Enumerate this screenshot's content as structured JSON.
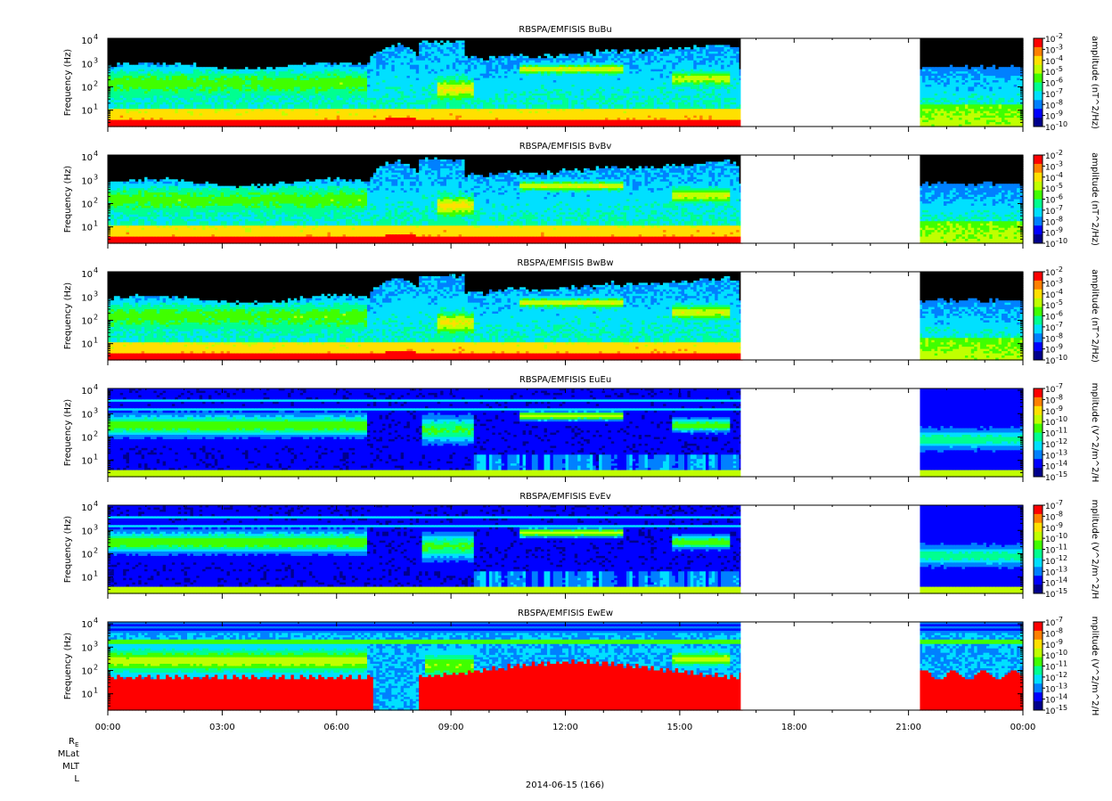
{
  "chart_data": {
    "type": "heatmap",
    "date_label": "2014-06-15 (166)",
    "x_axis": {
      "range": [
        "00:00",
        "24:00"
      ],
      "tick_labels": [
        "00:00",
        "03:00",
        "06:00",
        "09:00",
        "12:00",
        "15:00",
        "18:00",
        "21:00",
        "00:00"
      ],
      "data_gap_hours": [
        16.6,
        21.3
      ]
    },
    "ephemeris_labels": [
      "R_E",
      "MLat",
      "MLT",
      "L"
    ],
    "panels": [
      {
        "title": "RBSPA/EMFISIS  BuBu",
        "ylabel": "Frequency (Hz)",
        "yscale": "log",
        "ylim_hz": [
          2,
          12000
        ],
        "y_ticks": [
          "10^4",
          "10^3",
          "10^2",
          "10^1"
        ],
        "colorbar_label": "amplitude (nT^2/Hz)",
        "colorbar_scale": "log",
        "colorbar_range_exp": [
          -10,
          -2
        ],
        "colorbar_ticks": [
          "10^-2",
          "10^-3",
          "10^-4",
          "10^-5",
          "10^-6",
          "10^-7",
          "10^-8",
          "10^-9",
          "10^-10"
        ],
        "kind": "B"
      },
      {
        "title": "RBSPA/EMFISIS  BvBv",
        "ylabel": "Frequency (Hz)",
        "yscale": "log",
        "ylim_hz": [
          2,
          12000
        ],
        "y_ticks": [
          "10^4",
          "10^3",
          "10^2",
          "10^1"
        ],
        "colorbar_label": "amplitude (nT^2/Hz)",
        "colorbar_scale": "log",
        "colorbar_range_exp": [
          -10,
          -2
        ],
        "colorbar_ticks": [
          "10^-2",
          "10^-3",
          "10^-4",
          "10^-5",
          "10^-6",
          "10^-7",
          "10^-8",
          "10^-9",
          "10^-10"
        ],
        "kind": "B"
      },
      {
        "title": "RBSPA/EMFISIS  BwBw",
        "ylabel": "Frequency (Hz)",
        "yscale": "log",
        "ylim_hz": [
          2,
          12000
        ],
        "y_ticks": [
          "10^4",
          "10^3",
          "10^2",
          "10^1"
        ],
        "colorbar_label": "amplitude (nT^2/Hz)",
        "colorbar_scale": "log",
        "colorbar_range_exp": [
          -10,
          -2
        ],
        "colorbar_ticks": [
          "10^-2",
          "10^-3",
          "10^-4",
          "10^-5",
          "10^-6",
          "10^-7",
          "10^-8",
          "10^-9",
          "10^-10"
        ],
        "kind": "B"
      },
      {
        "title": "RBSPA/EMFISIS  EuEu",
        "ylabel": "Frequency (Hz)",
        "yscale": "log",
        "ylim_hz": [
          2,
          12000
        ],
        "y_ticks": [
          "10^4",
          "10^3",
          "10^2",
          "10^1"
        ],
        "colorbar_label": "mplitude (V^2/m^2/H",
        "colorbar_scale": "log",
        "colorbar_range_exp": [
          -15,
          -7
        ],
        "colorbar_ticks": [
          "10^-7",
          "10^-8",
          "10^-9",
          "10^-10",
          "10^-11",
          "10^-12",
          "10^-13",
          "10^-14",
          "10^-15"
        ],
        "kind": "E"
      },
      {
        "title": "RBSPA/EMFISIS  EvEv",
        "ylabel": "Frequency (Hz)",
        "yscale": "log",
        "ylim_hz": [
          2,
          12000
        ],
        "y_ticks": [
          "10^4",
          "10^3",
          "10^2",
          "10^1"
        ],
        "colorbar_label": "mplitude (V^2/m^2/H",
        "colorbar_scale": "log",
        "colorbar_range_exp": [
          -15,
          -7
        ],
        "colorbar_ticks": [
          "10^-7",
          "10^-8",
          "10^-9",
          "10^-10",
          "10^-11",
          "10^-12",
          "10^-13",
          "10^-14",
          "10^-15"
        ],
        "kind": "E"
      },
      {
        "title": "RBSPA/EMFISIS  EwEw",
        "ylabel": "Frequency (Hz)",
        "yscale": "log",
        "ylim_hz": [
          2,
          12000
        ],
        "y_ticks": [
          "10^4",
          "10^3",
          "10^2",
          "10^1"
        ],
        "colorbar_label": "mplitude (V^2/m^2/H",
        "colorbar_scale": "log",
        "colorbar_range_exp": [
          -15,
          -7
        ],
        "colorbar_ticks": [
          "10^-7",
          "10^-8",
          "10^-9",
          "10^-10",
          "10^-11",
          "10^-12",
          "10^-13",
          "10^-14",
          "10^-15"
        ],
        "kind": "Ew"
      }
    ],
    "colormap": [
      "#00008c",
      "#0000ff",
      "#0080ff",
      "#00e0ff",
      "#00ff90",
      "#40ff00",
      "#c0ff00",
      "#ffe000",
      "#ff8000",
      "#ff0000"
    ],
    "fill_colors": {
      "saturated_low": "#000000",
      "gap": "#ffffff"
    }
  }
}
